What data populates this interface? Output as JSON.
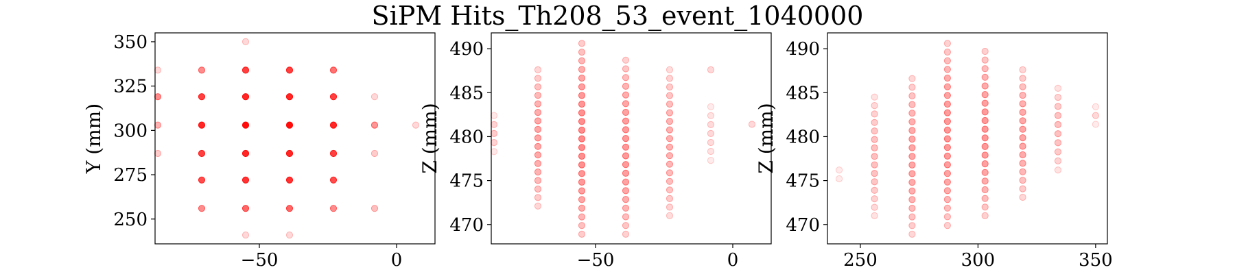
{
  "title": "SiPM Hits_Th208_53_event_1040000",
  "colors": {
    "hit": "#ff0000",
    "axis": "#000000",
    "background": "#ffffff"
  },
  "chart_data": [
    {
      "type": "scatter",
      "title": "",
      "xlabel": "",
      "ylabel": "Y (mm)",
      "xlim": [
        -88,
        14
      ],
      "ylim": [
        236,
        355
      ],
      "xticks": [
        -50,
        0
      ],
      "yticks": [
        250,
        275,
        300,
        325,
        350
      ],
      "x": [
        -55,
        -87,
        -71,
        -55,
        -39,
        -23,
        -8,
        -87,
        -71,
        -55,
        -39,
        -23,
        -8,
        -87,
        -71,
        -55,
        -39,
        -23,
        -8,
        7,
        -87,
        -71,
        -55,
        -39,
        -23,
        -8,
        -71,
        -55,
        -39,
        -23,
        -71,
        -55,
        -39,
        -23,
        -8,
        -55,
        -39
      ],
      "y": [
        350,
        334,
        334,
        334,
        334,
        334,
        319,
        319,
        319,
        319,
        319,
        319,
        303,
        303,
        303,
        303,
        303,
        303,
        303,
        303,
        287,
        287,
        287,
        287,
        287,
        287,
        272,
        272,
        272,
        272,
        256,
        256,
        256,
        256,
        256,
        241,
        241
      ],
      "alpha": [
        0.15,
        0.15,
        0.45,
        0.75,
        0.75,
        0.55,
        0.15,
        0.45,
        0.75,
        0.85,
        0.85,
        0.75,
        0.15,
        0.3,
        0.85,
        0.95,
        0.95,
        0.85,
        0.3,
        0.15,
        0.2,
        0.75,
        0.85,
        0.85,
        0.75,
        0.2,
        0.7,
        0.8,
        0.8,
        0.7,
        0.45,
        0.6,
        0.6,
        0.45,
        0.25,
        0.15,
        0.15
      ]
    },
    {
      "type": "scatter",
      "title": "",
      "xlabel": "",
      "ylabel": "Z (mm)",
      "xlim": [
        -88,
        14
      ],
      "ylim": [
        467.8,
        491.8
      ],
      "xticks": [
        -50,
        0
      ],
      "yticks": [
        470,
        475,
        480,
        485,
        490
      ],
      "columns": [
        {
          "x": -87,
          "z_min": 478.3,
          "z_max": 482.4,
          "alpha": 0.2
        },
        {
          "x": -71,
          "z_min": 472.1,
          "z_max": 487.6,
          "alpha": 0.35
        },
        {
          "x": -55,
          "z_min": 468.9,
          "z_max": 490.6,
          "alpha": 0.45
        },
        {
          "x": -39,
          "z_min": 468.9,
          "z_max": 488.7,
          "alpha": 0.4
        },
        {
          "x": -23,
          "z_min": 471.0,
          "z_max": 487.6,
          "alpha": 0.3
        },
        {
          "x": -8,
          "z_min": 477.3,
          "z_max": 483.4,
          "alpha": 0.15
        },
        {
          "x": 7,
          "z_min": 481.4,
          "z_max": 481.4,
          "alpha": 0.15
        }
      ],
      "extra_points": [
        {
          "x": -8,
          "z": 487.6,
          "alpha": 0.15
        }
      ]
    },
    {
      "type": "scatter",
      "title": "",
      "xlabel": "",
      "ylabel": "Z (mm)",
      "xlim": [
        236,
        355
      ],
      "ylim": [
        467.8,
        491.8
      ],
      "xticks": [
        250,
        300,
        350
      ],
      "yticks": [
        470,
        475,
        480,
        485,
        490
      ],
      "columns": [
        {
          "x": 241,
          "z_min": 475.2,
          "z_max": 476.2,
          "alpha": 0.15
        },
        {
          "x": 256,
          "z_min": 471.0,
          "z_max": 484.5,
          "alpha": 0.25
        },
        {
          "x": 272,
          "z_min": 468.9,
          "z_max": 486.6,
          "alpha": 0.35
        },
        {
          "x": 287,
          "z_min": 469.9,
          "z_max": 490.6,
          "alpha": 0.4
        },
        {
          "x": 303,
          "z_min": 471.0,
          "z_max": 489.7,
          "alpha": 0.4
        },
        {
          "x": 319,
          "z_min": 473.1,
          "z_max": 487.6,
          "alpha": 0.35
        },
        {
          "x": 334,
          "z_min": 476.2,
          "z_max": 485.5,
          "alpha": 0.25
        },
        {
          "x": 350,
          "z_min": 481.4,
          "z_max": 483.4,
          "alpha": 0.15
        }
      ]
    }
  ]
}
